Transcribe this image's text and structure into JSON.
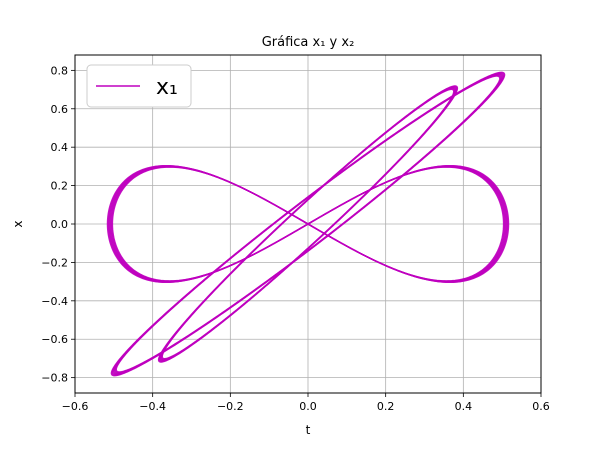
{
  "chart_data": {
    "type": "line",
    "title": "Gráfica x₁ y x₂",
    "xlabel": "t",
    "ylabel": "x",
    "xlim": [
      -0.6,
      0.6
    ],
    "ylim": [
      -0.88,
      0.88
    ],
    "xticks": [
      -0.6,
      -0.4,
      -0.2,
      0.0,
      0.2,
      0.4,
      0.6
    ],
    "xtick_labels": [
      "−0.6",
      "−0.4",
      "−0.2",
      "0.0",
      "0.2",
      "0.4",
      "0.6"
    ],
    "yticks": [
      -0.8,
      -0.6,
      -0.4,
      -0.2,
      0.0,
      0.2,
      0.4,
      0.6,
      0.8
    ],
    "ytick_labels": [
      "−0.8",
      "−0.6",
      "−0.4",
      "−0.2",
      "0.0",
      "0.2",
      "0.4",
      "0.6",
      "0.8"
    ],
    "grid": true,
    "legend_position": "top-left",
    "series": [
      {
        "name": "x₁",
        "color": "#bf00bf",
        "shape": "Lissajous-type closed curves traced repeatedly",
        "components": [
          {
            "a": 0.5,
            "b": 0.78,
            "kx": 1,
            "ky": 1,
            "phase": 0.18
          },
          {
            "a": 0.38,
            "b": 0.71,
            "kx": 1,
            "ky": 1,
            "phase": 0.18
          },
          {
            "a": 0.51,
            "b": 0.3,
            "kx": 1,
            "ky": 2,
            "phase": 0.0
          }
        ],
        "ribbon_width": 0.025
      }
    ]
  }
}
